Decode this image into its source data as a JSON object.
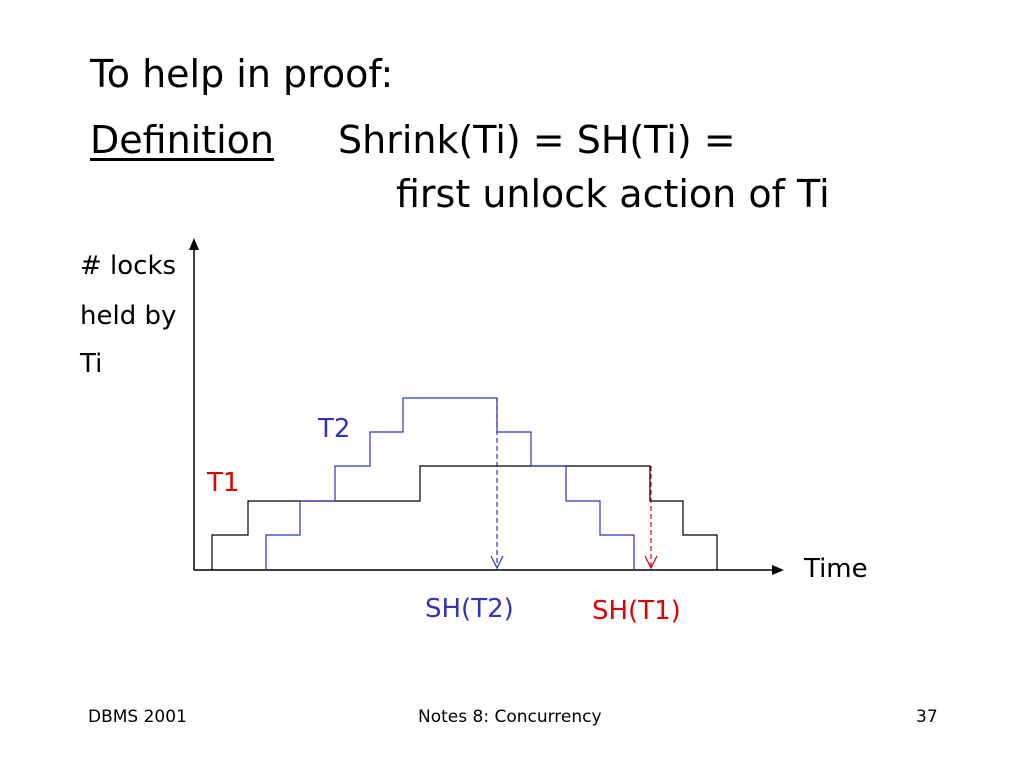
{
  "slide": {
    "title": "To help in proof:",
    "definition_term": "Definition",
    "definition_line1": "Shrink(Ti) = SH(Ti) =",
    "definition_line2": "first unlock action of Ti"
  },
  "diagram": {
    "y_label_lines": [
      "# locks",
      "held by",
      "Ti"
    ],
    "x_label": "Time",
    "t1_label": "T1",
    "t2_label": "T2",
    "sh_t2_label": "SH(T2)",
    "sh_t1_label": "SH(T1)",
    "colors": {
      "t1": "#000000",
      "t2": "#3333bb",
      "sh_t2": "#3333bb",
      "sh_t1": "#dd0000",
      "t1_label": "#dd0000",
      "t2_label": "#3333bb"
    }
  },
  "footer": {
    "left": "DBMS 2001",
    "center": "Notes 8: Concurrency",
    "right": "37"
  }
}
